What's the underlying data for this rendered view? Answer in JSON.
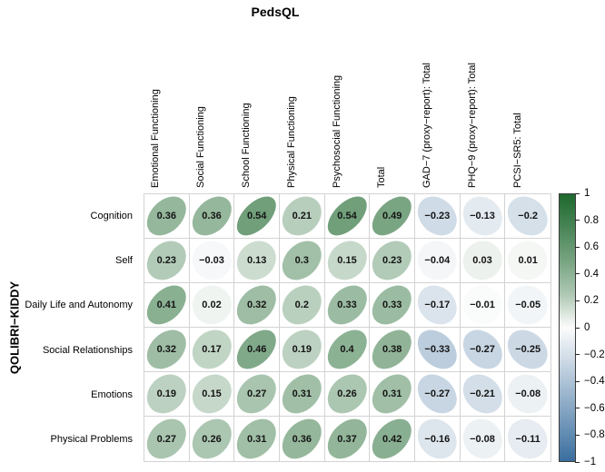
{
  "figure": {
    "title": "PedsQL",
    "y_axis_title": "QOLIBRI−KIDDY"
  },
  "chart_data": {
    "type": "heatmap",
    "variant": "correlation-ellipse-matrix",
    "title": "PedsQL",
    "row_group_label": "QOLIBRI−KIDDY",
    "columns": [
      "Emotional Functioning",
      "Social Functioning",
      "School Functioning",
      "Physical Functioning",
      "Psychosocial Functioning",
      "Total",
      "GAD−7 (proxy−report): Total",
      "PHQ−9 (proxy−report): Total",
      "PCSI−SR5: Total"
    ],
    "rows": [
      "Cognition",
      "Self",
      "Daily Life and Autonomy",
      "Social Relationships",
      "Emotions",
      "Physical Problems"
    ],
    "values": [
      [
        0.36,
        0.36,
        0.54,
        0.21,
        0.54,
        0.49,
        -0.23,
        -0.13,
        -0.2
      ],
      [
        0.23,
        -0.03,
        0.13,
        0.3,
        0.15,
        0.23,
        -0.04,
        0.03,
        0.01
      ],
      [
        0.41,
        0.02,
        0.32,
        0.2,
        0.33,
        0.33,
        -0.17,
        -0.01,
        -0.05
      ],
      [
        0.32,
        0.17,
        0.46,
        0.19,
        0.4,
        0.38,
        -0.33,
        -0.27,
        -0.25
      ],
      [
        0.19,
        0.15,
        0.27,
        0.31,
        0.26,
        0.31,
        -0.27,
        -0.21,
        -0.08
      ],
      [
        0.27,
        0.26,
        0.31,
        0.36,
        0.37,
        0.42,
        -0.16,
        -0.08,
        -0.11
      ]
    ],
    "legend": {
      "position": "right",
      "min": -1,
      "max": 1,
      "ticks": [
        "1",
        "0.8",
        "0.6",
        "0.4",
        "0.2",
        "0",
        "−0.2",
        "−0.4",
        "−0.6",
        "−0.8",
        "−1"
      ]
    },
    "colors": {
      "positive_max": "#1e682e",
      "zero": "#fcfcfc",
      "negative_min": "#3a6e9e",
      "grid_line": "#d3d3d3",
      "value_text": "#141414"
    }
  }
}
